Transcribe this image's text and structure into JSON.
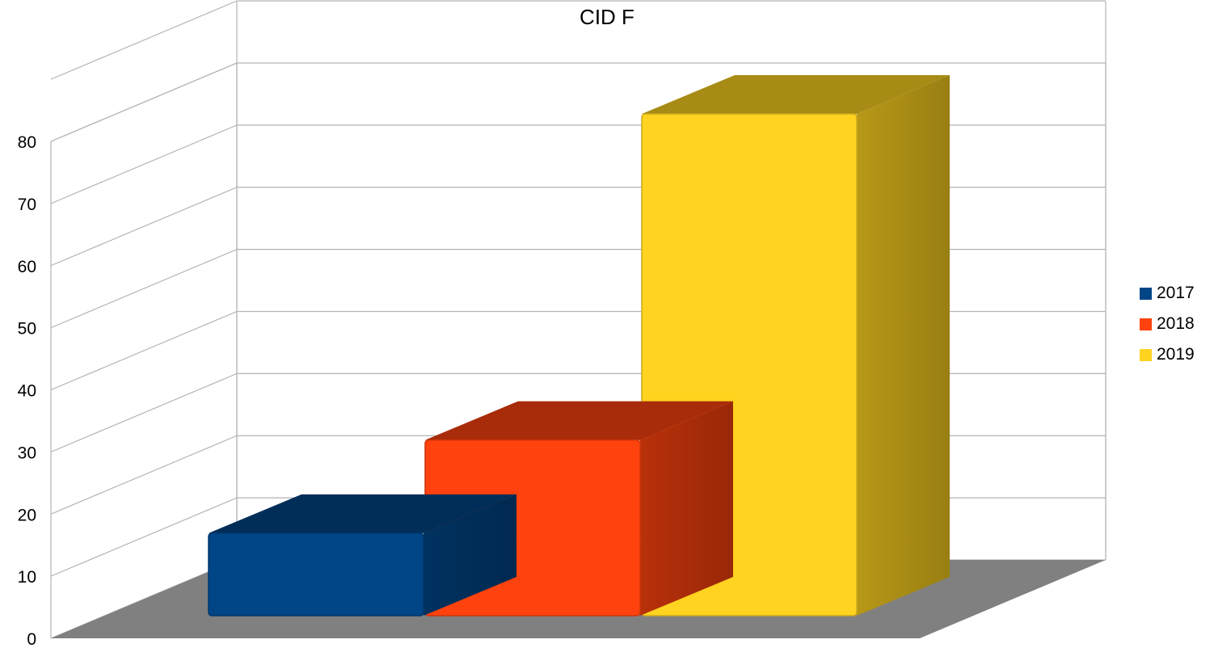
{
  "chart_data": {
    "type": "bar",
    "style": "3d-column",
    "title": "CID F",
    "xlabel": "",
    "ylabel": "",
    "ylim": [
      0,
      80
    ],
    "yticks": [
      "0",
      "10",
      "20",
      "30",
      "40",
      "50",
      "60",
      "70",
      "80"
    ],
    "grid": true,
    "legend_position": "right",
    "categories": [
      ""
    ],
    "series": [
      {
        "name": "2017",
        "values": [
          12.5
        ],
        "color": "#004586"
      },
      {
        "name": "2018",
        "values": [
          27.5
        ],
        "color": "#ff420e"
      },
      {
        "name": "2019",
        "values": [
          80
        ],
        "color": "#ffd320"
      }
    ]
  },
  "floor_color": "#808080",
  "grid_color": "#b3b3b3"
}
